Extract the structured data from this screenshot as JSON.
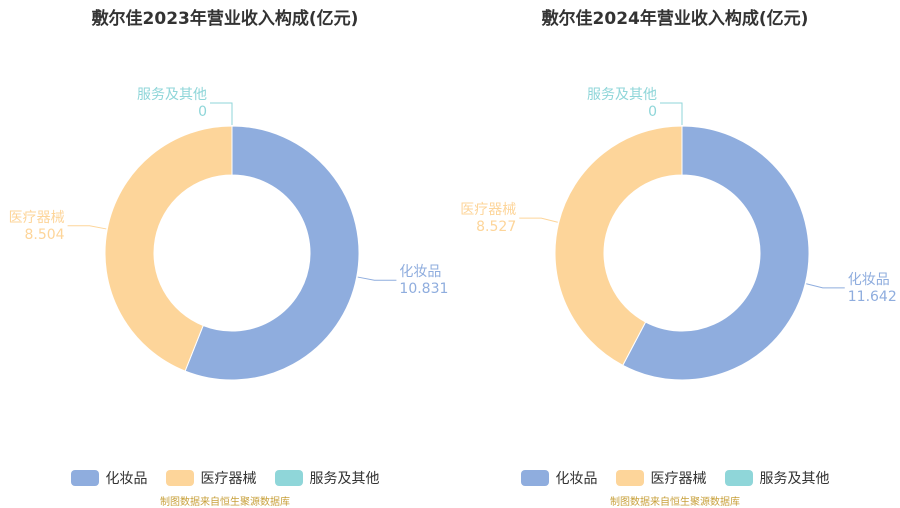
{
  "colors": {
    "cosmetics": "#8fadde",
    "medical": "#fdd59a",
    "services": "#8fd6d9"
  },
  "legend": [
    "化妆品",
    "医疗器械",
    "服务及其他"
  ],
  "source": "制图数据来自恒生聚源数据库",
  "chart_data": [
    {
      "type": "pie",
      "title": "敷尔佳2023年营业收入构成(亿元)",
      "slices": [
        {
          "name": "化妆品",
          "value": 10.831,
          "label": "10.831"
        },
        {
          "name": "医疗器械",
          "value": 8.504,
          "label": "8.504"
        },
        {
          "name": "服务及其他",
          "value": 0,
          "label": "0"
        }
      ]
    },
    {
      "type": "pie",
      "title": "敷尔佳2024年营业收入构成(亿元)",
      "slices": [
        {
          "name": "化妆品",
          "value": 11.642,
          "label": "11.642"
        },
        {
          "name": "医疗器械",
          "value": 8.527,
          "label": "8.527"
        },
        {
          "name": "服务及其他",
          "value": 0,
          "label": "0"
        }
      ]
    }
  ]
}
